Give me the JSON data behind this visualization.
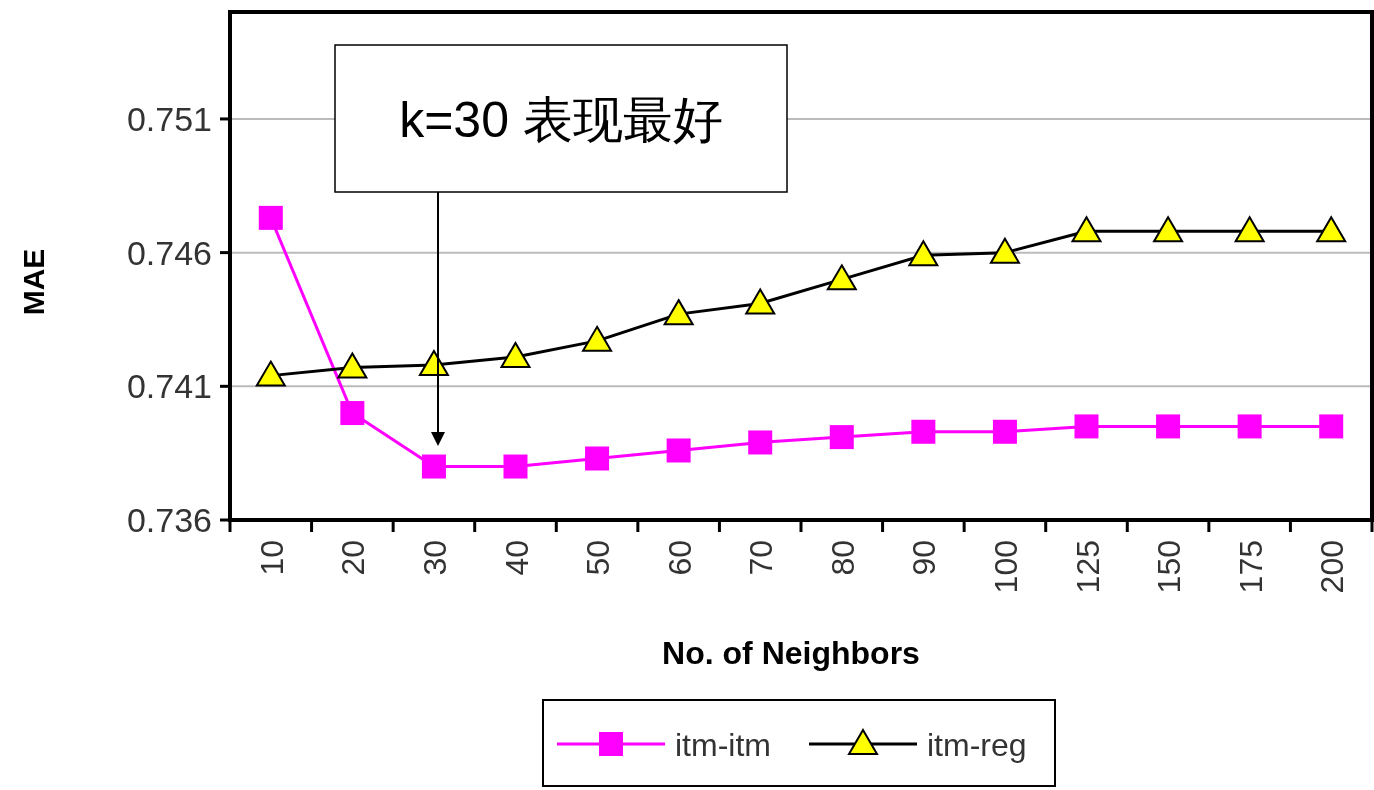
{
  "chart_data": {
    "type": "line",
    "xlabel": "No. of Neighbors",
    "ylabel": "MAE",
    "categories": [
      "10",
      "20",
      "30",
      "40",
      "50",
      "60",
      "70",
      "80",
      "90",
      "100",
      "125",
      "150",
      "175",
      "200"
    ],
    "ylim": [
      0.736,
      0.755
    ],
    "yticks": [
      0.736,
      0.741,
      0.746,
      0.751
    ],
    "grid": "y",
    "legend": "bottom",
    "series": [
      {
        "name": "itm-itm",
        "color": "#ff00ff",
        "marker": "square",
        "values": [
          0.7473,
          0.74,
          0.738,
          0.738,
          0.7383,
          0.7386,
          0.7389,
          0.7391,
          0.7393,
          0.7393,
          0.7395,
          0.7395,
          0.7395,
          0.7395
        ]
      },
      {
        "name": "itm-reg",
        "color": "#000000",
        "marker": "triangle",
        "values": [
          0.7414,
          0.7417,
          0.7418,
          0.7421,
          0.7427,
          0.7437,
          0.7441,
          0.745,
          0.7459,
          0.746,
          0.7468,
          0.7468,
          0.7468,
          0.7468
        ]
      }
    ],
    "annotations": [
      "k=30 表现最好"
    ]
  }
}
